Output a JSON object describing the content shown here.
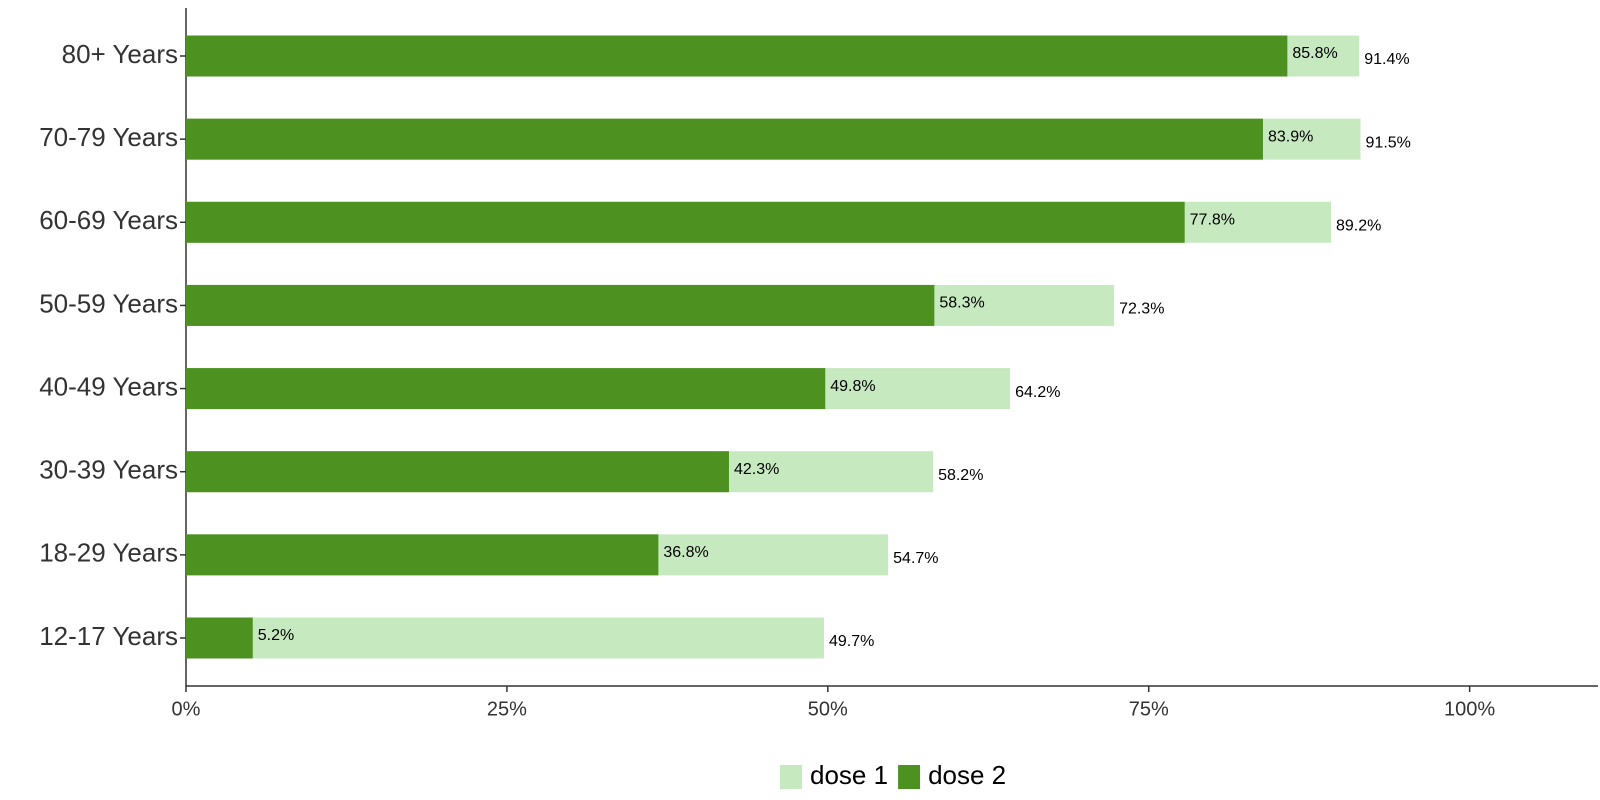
{
  "chart_data": {
    "type": "bar",
    "orientation": "horizontal",
    "overlap": true,
    "categories": [
      "80+ Years",
      "70-79 Years",
      "60-69 Years",
      "50-59 Years",
      "40-49 Years",
      "30-39 Years",
      "18-29 Years",
      "12-17 Years"
    ],
    "series": [
      {
        "name": "dose 1",
        "color": "#c7e9c0",
        "values": [
          91.4,
          91.5,
          89.2,
          72.3,
          64.2,
          58.2,
          54.7,
          49.7
        ],
        "value_labels": [
          "91.4%",
          "91.5%",
          "89.2%",
          "72.3%",
          "64.2%",
          "58.2%",
          "54.7%",
          "49.7%"
        ]
      },
      {
        "name": "dose 2",
        "color": "#4d9221",
        "values": [
          85.8,
          83.9,
          77.8,
          58.3,
          49.8,
          42.3,
          36.8,
          5.2
        ],
        "value_labels": [
          "85.8%",
          "83.9%",
          "77.8%",
          "58.3%",
          "49.8%",
          "42.3%",
          "36.8%",
          "5.2%"
        ]
      }
    ],
    "xlim": [
      0,
      110
    ],
    "xticks": [
      {
        "value": 0,
        "label": "0%"
      },
      {
        "value": 25,
        "label": "25%"
      },
      {
        "value": 50,
        "label": "50%"
      },
      {
        "value": 75,
        "label": "75%"
      },
      {
        "value": 100,
        "label": "100%"
      }
    ],
    "grid": false,
    "legend": "bottom"
  }
}
